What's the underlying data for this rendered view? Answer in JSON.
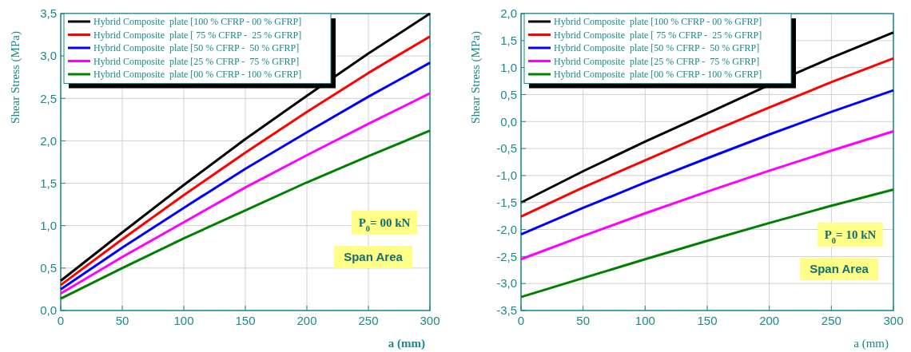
{
  "chart_data": [
    {
      "type": "line",
      "xlabel": "a (mm)",
      "ylabel": "Shear Stress (MPa)",
      "x": [
        0,
        50,
        100,
        150,
        200,
        250,
        300
      ],
      "xlim": [
        0,
        300
      ],
      "xticks": [
        0,
        50,
        100,
        150,
        200,
        250,
        300
      ],
      "ylim": [
        0,
        3.5
      ],
      "yticks": [
        {
          "value": 0,
          "label": "0,0"
        },
        {
          "value": 0.5,
          "label": "0,5"
        },
        {
          "value": 1,
          "label": "1,0"
        },
        {
          "value": 1.5,
          "label": "1,5"
        },
        {
          "value": 2,
          "label": "2,0"
        },
        {
          "value": 2.5,
          "label": "2,5"
        },
        {
          "value": 3,
          "label": "3,0"
        },
        {
          "value": 3.5,
          "label": "3,5"
        }
      ],
      "grid": true,
      "legend": "top left",
      "marker": "none",
      "line_style": "solid",
      "annotations": [
        "P$_{0}$= 00 kN",
        "Span Area"
      ],
      "series": [
        {
          "name": "Hybrid Composite  plate [100 % CFRP - 00 % GFRP]",
          "color": "#000000",
          "values": [
            0.35,
            0.92,
            1.48,
            2.02,
            2.53,
            3.03,
            3.5
          ]
        },
        {
          "name": "Hybrid Composite  plate [ 75 % CFRP -  25 % GFRP]",
          "color": "#ff0000",
          "values": [
            0.3,
            0.84,
            1.36,
            1.86,
            2.34,
            2.8,
            3.23
          ]
        },
        {
          "name": "Hybrid Composite  plate [50 % CFRP -  50 % GFRP]",
          "color": "#0000ff",
          "values": [
            0.25,
            0.74,
            1.21,
            1.67,
            2.1,
            2.52,
            2.92
          ]
        },
        {
          "name": "Hybrid Composite  plate [25 % CFRP -  75 % GFRP]",
          "color": "#ff00ff",
          "values": [
            0.2,
            0.63,
            1.04,
            1.45,
            1.83,
            2.2,
            2.56
          ]
        },
        {
          "name": "Hybrid Composite  plate [00 % CFRP - 100 % GFRP]",
          "color": "#008000",
          "values": [
            0.14,
            0.5,
            0.85,
            1.18,
            1.51,
            1.82,
            2.12
          ]
        }
      ]
    },
    {
      "type": "line",
      "xlabel": "a (mm)",
      "ylabel": "Shear Stress (MPa)",
      "x": [
        0,
        50,
        100,
        150,
        200,
        250,
        300
      ],
      "xlim": [
        0,
        300
      ],
      "xticks": [
        0,
        50,
        100,
        150,
        200,
        250,
        300
      ],
      "ylim": [
        -3.5,
        2
      ],
      "yticks": [
        {
          "value": -3.5,
          "label": "-3,5"
        },
        {
          "value": -3,
          "label": "-3,0"
        },
        {
          "value": -2.5,
          "label": "-2,5"
        },
        {
          "value": -2,
          "label": "-2,0"
        },
        {
          "value": -1.5,
          "label": "-1,5"
        },
        {
          "value": -1,
          "label": "-1,0"
        },
        {
          "value": -0.5,
          "label": "-0,5"
        },
        {
          "value": 0,
          "label": "0,0"
        },
        {
          "value": 0.5,
          "label": "0,5"
        },
        {
          "value": 1,
          "label": "1,0"
        },
        {
          "value": 1.5,
          "label": "1,5"
        },
        {
          "value": 2,
          "label": "2,0"
        }
      ],
      "grid": true,
      "legend": "top left",
      "marker": "none",
      "line_style": "solid",
      "annotations": [
        "P$_{0}$= 10 kN",
        "Span Area"
      ],
      "series": [
        {
          "name": "Hybrid Composite  plate [100 % CFRP - 00 % GFRP]",
          "color": "#000000",
          "values": [
            -1.5,
            -0.92,
            -0.37,
            0.15,
            0.68,
            1.18,
            1.65
          ]
        },
        {
          "name": "Hybrid Composite  plate [ 75 % CFRP -  25 % GFRP]",
          "color": "#ff0000",
          "values": [
            -1.76,
            -1.22,
            -0.72,
            -0.22,
            0.26,
            0.73,
            1.17
          ]
        },
        {
          "name": "Hybrid Composite  plate [50 % CFRP -  50 % GFRP]",
          "color": "#0000ff",
          "values": [
            -2.09,
            -1.6,
            -1.13,
            -0.68,
            -0.24,
            0.18,
            0.58
          ]
        },
        {
          "name": "Hybrid Composite  plate [25 % CFRP -  75 % GFRP]",
          "color": "#ff00ff",
          "values": [
            -2.55,
            -2.12,
            -1.7,
            -1.3,
            -0.91,
            -0.54,
            -0.18
          ]
        },
        {
          "name": "Hybrid Composite  plate [00 % CFRP - 100 % GFRP]",
          "color": "#008000",
          "values": [
            -3.25,
            -2.9,
            -2.55,
            -2.21,
            -1.88,
            -1.56,
            -1.26
          ]
        }
      ]
    }
  ]
}
